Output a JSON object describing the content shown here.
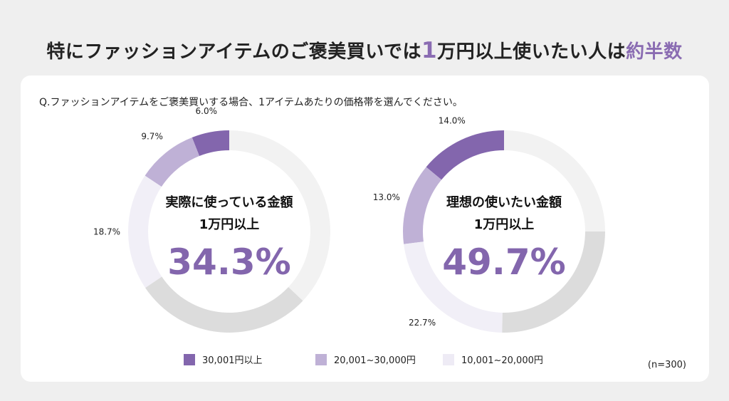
{
  "title": {
    "pre": "特にファッションアイテムのご褒美買いでは",
    "num": "1",
    "mid": "万円以上使いたい人は",
    "hl": "約半数"
  },
  "question": "Q.ファッションアイテムをご褒美買いする場合、1アイテムあたりの価格帯を選んでください。",
  "sample": "(n=300)",
  "chart_data": [
    {
      "type": "pie",
      "donut": true,
      "direction": "counterclockwise",
      "center_title": "実際に使っている金額",
      "center_sub": "1万円以上",
      "center_value": "34.3%",
      "segments": [
        {
          "value": 6.0,
          "label": "6.0%",
          "color": "#8366ad"
        },
        {
          "value": 9.7,
          "label": "9.7%",
          "color": "#bfb1d6"
        },
        {
          "value": 18.7,
          "label": "18.7%",
          "color": "#f1eff7"
        },
        {
          "value": 28.6,
          "label": "",
          "color": "#dcdcdc"
        },
        {
          "value": 37.0,
          "label": "",
          "color": "#f2f2f2"
        }
      ]
    },
    {
      "type": "pie",
      "donut": true,
      "direction": "counterclockwise",
      "center_title": "理想の使いたい金額",
      "center_sub": "1万円以上",
      "center_value": "49.7%",
      "segments": [
        {
          "value": 14.0,
          "label": "14.0%",
          "color": "#8366ad"
        },
        {
          "value": 13.0,
          "label": "13.0%",
          "color": "#bfb1d6"
        },
        {
          "value": 22.7,
          "label": "22.7%",
          "color": "#f1eff7"
        },
        {
          "value": 25.3,
          "label": "",
          "color": "#dcdcdc"
        },
        {
          "value": 25.0,
          "label": "",
          "color": "#f2f2f2"
        }
      ]
    }
  ],
  "legend": [
    {
      "label": "30,001円以上",
      "color": "#8366ad"
    },
    {
      "label": "20,001~30,000円",
      "color": "#bfb1d6"
    },
    {
      "label": "10,001~20,000円",
      "color": "#eeebf5"
    }
  ]
}
